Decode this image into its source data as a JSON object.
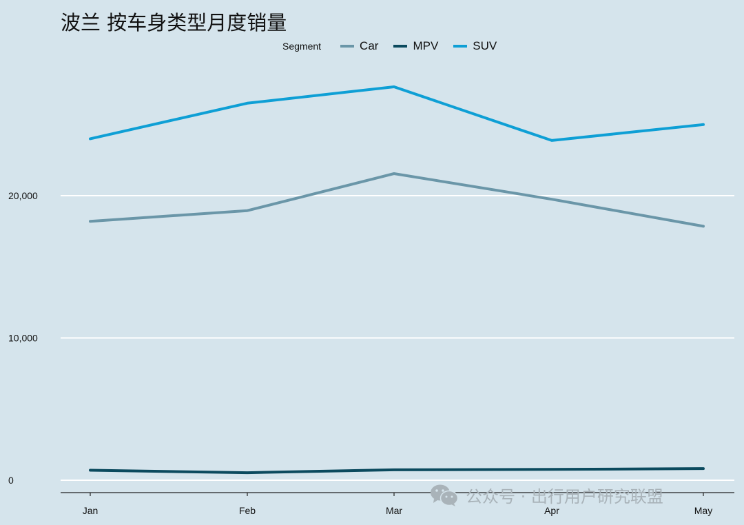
{
  "chart_data": {
    "type": "line",
    "title": "波兰 按车身类型月度销量",
    "xlabel": "",
    "ylabel": "",
    "categories": [
      "Jan",
      "Feb",
      "Mar",
      "Apr",
      "May"
    ],
    "ylim": [
      -800,
      28000
    ],
    "yticks": [
      0,
      10000,
      20000
    ],
    "ytick_labels": [
      "0",
      "10,000",
      "20,000"
    ],
    "grid": "horizontal",
    "legend_title": "Segment",
    "legend_placement": "top",
    "series": [
      {
        "name": "Car",
        "color": "#6a96a8",
        "values": [
          18200,
          18950,
          21550,
          19750,
          17850
        ]
      },
      {
        "name": "MPV",
        "color": "#0b4a5e",
        "values": [
          700,
          530,
          730,
          760,
          820
        ]
      },
      {
        "name": "SUV",
        "color": "#0e9fd5",
        "values": [
          24000,
          26500,
          27650,
          23880,
          25000
        ]
      }
    ]
  },
  "watermark": {
    "icon": "wechat-icon",
    "text": "公众号 · 出行用户研究联盟"
  }
}
